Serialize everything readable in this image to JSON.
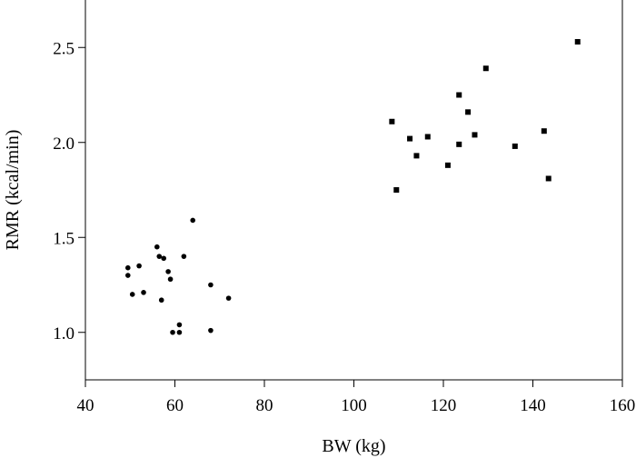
{
  "chart_data": {
    "type": "scatter",
    "title": "",
    "xlabel": "BW (kg)",
    "ylabel": "RMR (kcal/min)",
    "xlim": [
      40,
      160
    ],
    "ylim": [
      0.75,
      2.75
    ],
    "xticks": [
      40,
      60,
      80,
      100,
      120,
      140,
      160
    ],
    "yticks": [
      1.0,
      1.5,
      2.0,
      2.5
    ],
    "xtick_labels": [
      "40",
      "60",
      "80",
      "100",
      "120",
      "140",
      "160"
    ],
    "ytick_labels": [
      "1.0",
      "1.5",
      "2.0",
      "2.5"
    ],
    "grid": false,
    "legend": "none",
    "series": [
      {
        "marker": "circle",
        "color": "#000000",
        "points": [
          {
            "x": 49.5,
            "y": 1.34
          },
          {
            "x": 49.5,
            "y": 1.3
          },
          {
            "x": 50.5,
            "y": 1.2
          },
          {
            "x": 52.0,
            "y": 1.35
          },
          {
            "x": 53.0,
            "y": 1.21
          },
          {
            "x": 56.0,
            "y": 1.45
          },
          {
            "x": 56.5,
            "y": 1.4
          },
          {
            "x": 57.0,
            "y": 1.17
          },
          {
            "x": 57.5,
            "y": 1.39
          },
          {
            "x": 58.5,
            "y": 1.32
          },
          {
            "x": 59.0,
            "y": 1.28
          },
          {
            "x": 59.5,
            "y": 1.0
          },
          {
            "x": 61.0,
            "y": 1.04
          },
          {
            "x": 61.0,
            "y": 1.0
          },
          {
            "x": 62.0,
            "y": 1.4
          },
          {
            "x": 64.0,
            "y": 1.59
          },
          {
            "x": 68.0,
            "y": 1.25
          },
          {
            "x": 68.0,
            "y": 1.01
          },
          {
            "x": 72.0,
            "y": 1.18
          }
        ]
      },
      {
        "marker": "square",
        "color": "#000000",
        "points": [
          {
            "x": 108.5,
            "y": 2.11
          },
          {
            "x": 109.5,
            "y": 1.75
          },
          {
            "x": 112.5,
            "y": 2.02
          },
          {
            "x": 114.0,
            "y": 1.93
          },
          {
            "x": 116.5,
            "y": 2.03
          },
          {
            "x": 121.0,
            "y": 1.88
          },
          {
            "x": 123.5,
            "y": 2.25
          },
          {
            "x": 123.5,
            "y": 1.99
          },
          {
            "x": 125.5,
            "y": 2.16
          },
          {
            "x": 127.0,
            "y": 2.04
          },
          {
            "x": 129.5,
            "y": 2.39
          },
          {
            "x": 136.0,
            "y": 1.98
          },
          {
            "x": 142.5,
            "y": 2.06
          },
          {
            "x": 143.5,
            "y": 1.81
          },
          {
            "x": 150.0,
            "y": 2.53
          }
        ]
      }
    ]
  }
}
